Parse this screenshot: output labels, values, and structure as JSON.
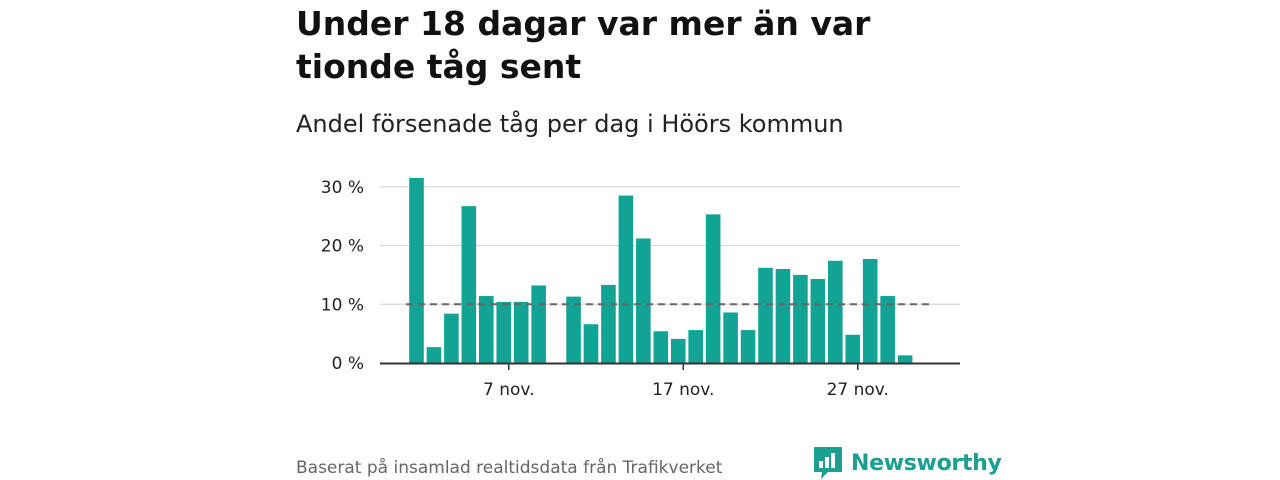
{
  "title": "Under 18 dagar var mer än var tionde tåg sent",
  "subtitle": "Andel försenade tåg per dag i Höörs kommun",
  "source": "Baserat på insamlad realtidsdata från Trafikverket",
  "brand": {
    "name": "Newsworthy",
    "color": "#1a9f90",
    "icon": "bar-chart-speech-bubble-icon"
  },
  "chart_data": {
    "type": "bar",
    "title": "Under 18 dagar var mer än var tionde tåg sent",
    "subtitle": "Andel försenade tåg per dag i Höörs kommun",
    "xlabel": "",
    "ylabel": "",
    "unit": "%",
    "bar_color": "#12a394",
    "reference_line": {
      "value": 10,
      "style": "dashed",
      "color": "#666666"
    },
    "ylim": [
      0,
      32
    ],
    "yticks": [
      {
        "value": 0,
        "label": "0 %"
      },
      {
        "value": 10,
        "label": "10 %"
      },
      {
        "value": 20,
        "label": "20 %"
      },
      {
        "value": 30,
        "label": "30 %"
      }
    ],
    "xticks": [
      {
        "day": 7,
        "label": "7 nov."
      },
      {
        "day": 17,
        "label": "17 nov."
      },
      {
        "day": 27,
        "label": "27 nov."
      }
    ],
    "days": [
      2,
      3,
      4,
      5,
      6,
      7,
      8,
      9,
      10,
      11,
      12,
      13,
      14,
      15,
      16,
      17,
      18,
      19,
      20,
      21,
      22,
      23,
      24,
      25,
      26,
      27,
      28,
      29,
      30,
      31
    ],
    "values": [
      31.5,
      2.7,
      8.4,
      26.7,
      11.4,
      10.4,
      10.4,
      13.2,
      null,
      11.3,
      6.6,
      13.3,
      28.5,
      21.2,
      5.4,
      4.1,
      5.6,
      25.3,
      8.6,
      5.6,
      16.2,
      16.0,
      15.0,
      14.3,
      17.4,
      4.8,
      17.7,
      11.4,
      1.3,
      null
    ],
    "grid": true,
    "legend": "none"
  }
}
